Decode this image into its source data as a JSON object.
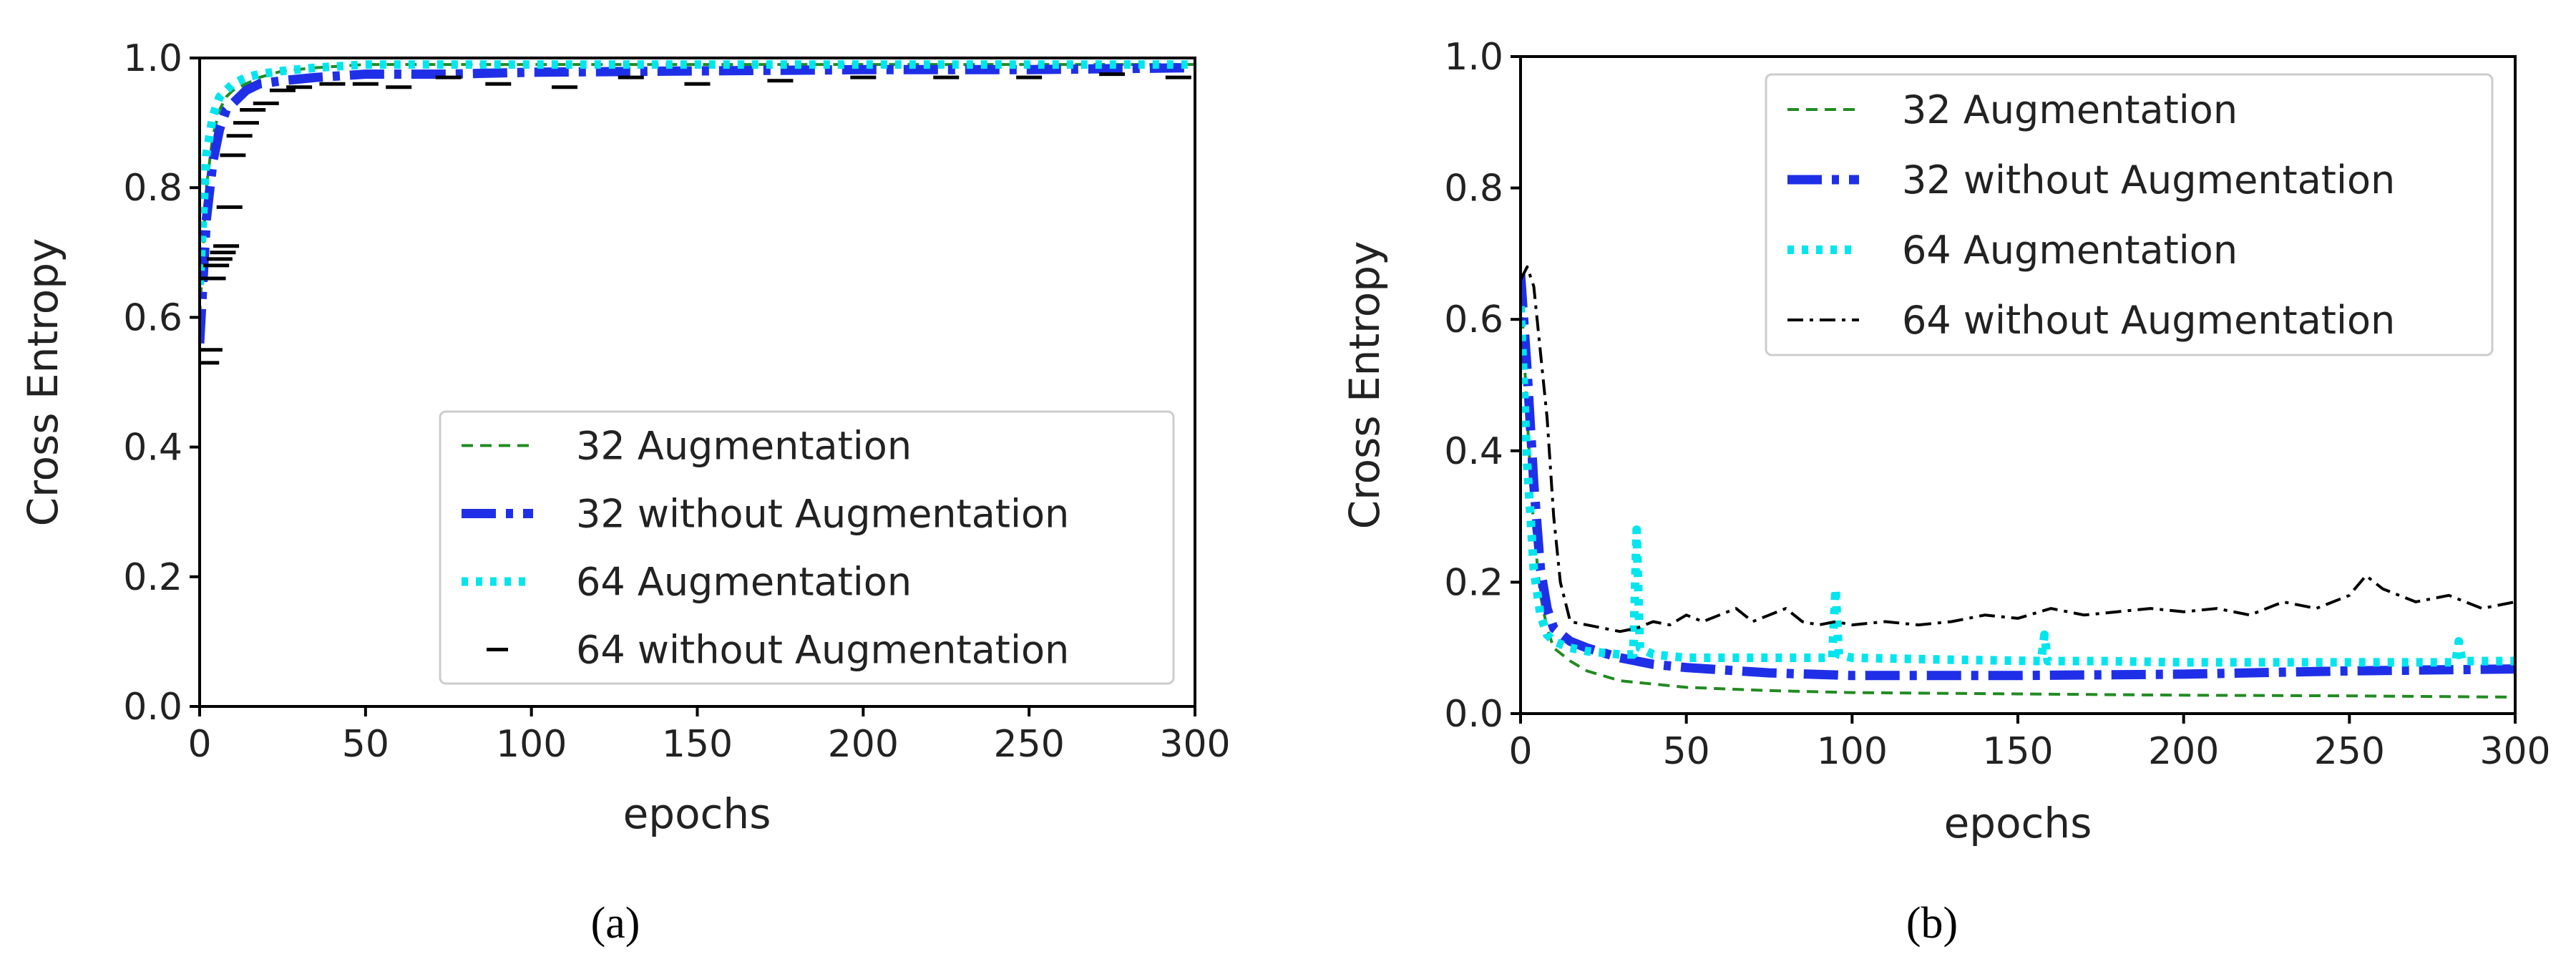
{
  "chart_data": [
    {
      "type": "line",
      "caption": "(a)",
      "ylabel": "Cross Entropy",
      "xlabel": "epochs",
      "xlim": [
        0,
        300
      ],
      "ylim": [
        0.0,
        1.0
      ],
      "xticks": [
        0,
        50,
        100,
        150,
        200,
        250,
        300
      ],
      "xtick_labels": [
        "0",
        "50",
        "100",
        "150",
        "200",
        "250",
        "300"
      ],
      "yticks": [
        0.0,
        0.2,
        0.4,
        0.6,
        0.8,
        1.0
      ],
      "ytick_labels": [
        "0.0",
        "0.2",
        "0.4",
        "0.6",
        "0.8",
        "1.0"
      ],
      "grid": false,
      "legend_position": "lower-right",
      "series": [
        {
          "name": "32 Augmentation",
          "color": "#228b22",
          "style": "dashed",
          "x": [
            0,
            2,
            4,
            6,
            8,
            10,
            14,
            18,
            25,
            35,
            50,
            75,
            100,
            150,
            200,
            250,
            300
          ],
          "y": [
            0.6,
            0.8,
            0.88,
            0.92,
            0.94,
            0.95,
            0.96,
            0.97,
            0.98,
            0.985,
            0.99,
            0.99,
            0.99,
            0.99,
            0.99,
            0.99,
            0.99
          ]
        },
        {
          "name": "32 without Augmentation",
          "color": "#1f2fe8",
          "style": "dashdot",
          "x": [
            0,
            2,
            4,
            6,
            8,
            10,
            14,
            18,
            25,
            35,
            50,
            75,
            100,
            150,
            200,
            250,
            300
          ],
          "y": [
            0.56,
            0.75,
            0.84,
            0.89,
            0.92,
            0.93,
            0.95,
            0.96,
            0.965,
            0.97,
            0.975,
            0.975,
            0.978,
            0.98,
            0.982,
            0.982,
            0.985
          ]
        },
        {
          "name": "64 Augmentation",
          "color": "#00e5ee",
          "style": "dotted",
          "x": [
            0,
            2,
            4,
            6,
            8,
            10,
            14,
            18,
            25,
            35,
            50,
            75,
            100,
            150,
            200,
            250,
            300
          ],
          "y": [
            0.65,
            0.85,
            0.91,
            0.94,
            0.95,
            0.96,
            0.97,
            0.975,
            0.98,
            0.985,
            0.99,
            0.99,
            0.99,
            0.99,
            0.99,
            0.99,
            0.99
          ]
        },
        {
          "name": "64 without Augmentation",
          "color": "#000000",
          "style": "markers",
          "x": [
            2,
            3,
            4,
            5,
            6,
            7,
            8,
            9,
            10,
            12,
            14,
            16,
            20,
            25,
            30,
            40,
            50,
            60,
            75,
            90,
            110,
            130,
            150,
            175,
            200,
            225,
            250,
            275,
            295
          ],
          "y": [
            0.53,
            0.55,
            0.66,
            0.68,
            0.69,
            0.7,
            0.71,
            0.77,
            0.85,
            0.88,
            0.9,
            0.92,
            0.93,
            0.95,
            0.955,
            0.96,
            0.96,
            0.955,
            0.97,
            0.96,
            0.955,
            0.97,
            0.96,
            0.965,
            0.97,
            0.97,
            0.97,
            0.975,
            0.97
          ]
        }
      ]
    },
    {
      "type": "line",
      "caption": "(b)",
      "ylabel": "Cross Entropy",
      "xlabel": "epochs",
      "xlim": [
        0,
        300
      ],
      "ylim": [
        0.0,
        1.0
      ],
      "xticks": [
        0,
        50,
        100,
        150,
        200,
        250,
        300
      ],
      "xtick_labels": [
        "0",
        "50",
        "100",
        "150",
        "200",
        "250",
        "300"
      ],
      "yticks": [
        0.0,
        0.2,
        0.4,
        0.6,
        0.8,
        1.0
      ],
      "ytick_labels": [
        "0.0",
        "0.2",
        "0.4",
        "0.6",
        "0.8",
        "1.0"
      ],
      "grid": false,
      "legend_position": "upper-right",
      "series": [
        {
          "name": "32 Augmentation",
          "color": "#228b22",
          "style": "dashed",
          "x": [
            0,
            2,
            4,
            6,
            8,
            10,
            15,
            20,
            30,
            40,
            50,
            75,
            100,
            150,
            200,
            250,
            300
          ],
          "y": [
            0.66,
            0.45,
            0.28,
            0.18,
            0.13,
            0.1,
            0.08,
            0.065,
            0.05,
            0.045,
            0.04,
            0.035,
            0.032,
            0.03,
            0.028,
            0.027,
            0.025
          ]
        },
        {
          "name": "32 without Augmentation",
          "color": "#1f2fe8",
          "style": "dashdot",
          "x": [
            0,
            2,
            4,
            6,
            8,
            10,
            15,
            20,
            30,
            40,
            50,
            75,
            100,
            150,
            200,
            250,
            300
          ],
          "y": [
            0.67,
            0.52,
            0.35,
            0.22,
            0.16,
            0.13,
            0.11,
            0.1,
            0.085,
            0.075,
            0.07,
            0.062,
            0.058,
            0.058,
            0.06,
            0.065,
            0.068
          ]
        },
        {
          "name": "64 Augmentation",
          "color": "#00e5ee",
          "style": "dotted",
          "x": [
            0,
            2,
            4,
            6,
            8,
            10,
            15,
            20,
            30,
            34,
            35,
            36,
            40,
            50,
            75,
            94,
            95,
            96,
            100,
            130,
            157,
            158,
            159,
            175,
            200,
            230,
            250,
            282,
            283,
            284,
            300
          ],
          "y": [
            0.62,
            0.38,
            0.22,
            0.15,
            0.12,
            0.11,
            0.1,
            0.095,
            0.09,
            0.09,
            0.28,
            0.1,
            0.09,
            0.085,
            0.085,
            0.085,
            0.19,
            0.09,
            0.085,
            0.082,
            0.08,
            0.12,
            0.08,
            0.08,
            0.078,
            0.078,
            0.078,
            0.078,
            0.11,
            0.08,
            0.08
          ]
        },
        {
          "name": "64 without Augmentation",
          "color": "#000000",
          "style": "dashdot-thin",
          "x": [
            0,
            2,
            4,
            6,
            8,
            10,
            12,
            15,
            20,
            25,
            30,
            35,
            40,
            45,
            50,
            55,
            60,
            65,
            70,
            75,
            80,
            85,
            90,
            95,
            100,
            110,
            120,
            130,
            140,
            150,
            160,
            170,
            180,
            190,
            200,
            210,
            220,
            230,
            240,
            250,
            255,
            260,
            270,
            280,
            290,
            300
          ],
          "y": [
            0.66,
            0.68,
            0.65,
            0.55,
            0.45,
            0.3,
            0.2,
            0.14,
            0.135,
            0.13,
            0.125,
            0.13,
            0.14,
            0.135,
            0.15,
            0.14,
            0.15,
            0.16,
            0.14,
            0.15,
            0.16,
            0.14,
            0.135,
            0.14,
            0.135,
            0.14,
            0.135,
            0.14,
            0.15,
            0.145,
            0.16,
            0.15,
            0.155,
            0.16,
            0.155,
            0.16,
            0.15,
            0.17,
            0.16,
            0.18,
            0.21,
            0.19,
            0.17,
            0.18,
            0.16,
            0.17
          ]
        }
      ]
    }
  ]
}
